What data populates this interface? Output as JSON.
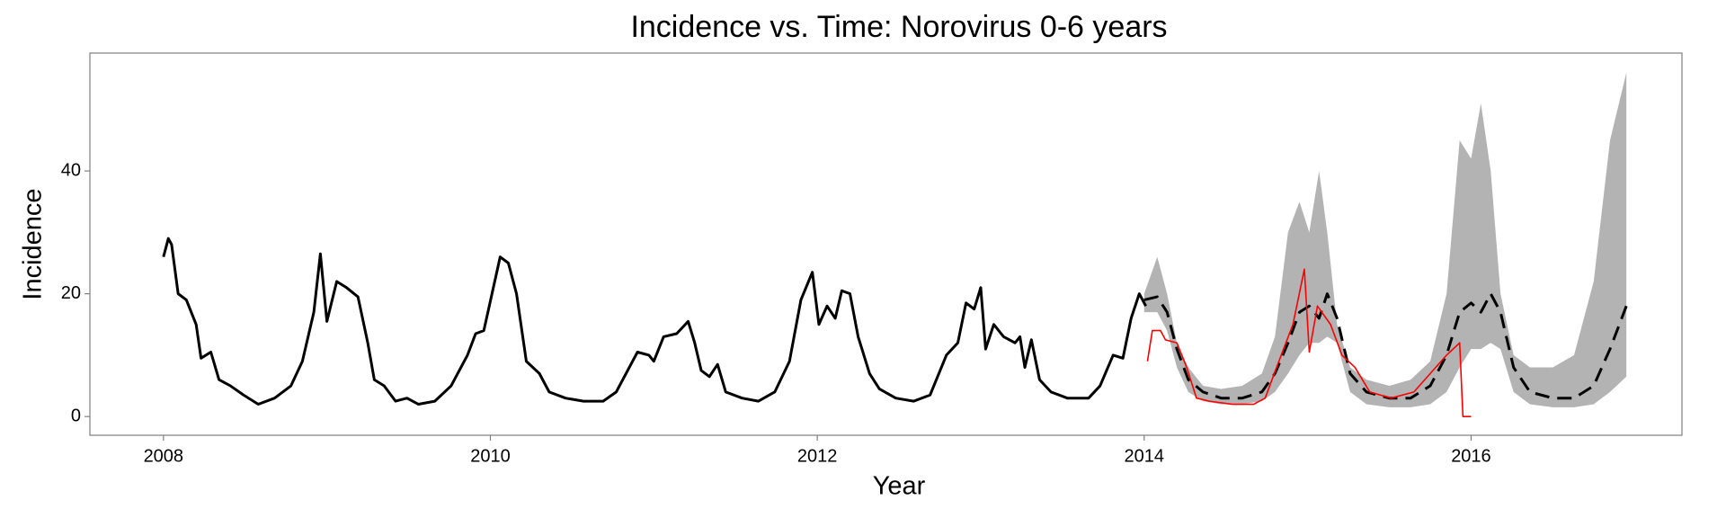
{
  "chart_data": {
    "type": "line",
    "title": "Incidence vs. Time: Norovirus 0-6 years",
    "x_label": "Year",
    "y_label": "Incidence",
    "xlim": [
      2007.55,
      2017.29
    ],
    "ylim": [
      -3.05,
      59.2
    ],
    "xticks": [
      2008,
      2010,
      2012,
      2014,
      2016
    ],
    "yticks": [
      0,
      20,
      40
    ],
    "grid": false,
    "band": {
      "color": "#b3b3b3",
      "x": [
        2014.0,
        2014.08,
        2014.14,
        2014.2,
        2014.27,
        2014.36,
        2014.47,
        2014.6,
        2014.72,
        2014.8,
        2014.88,
        2014.95,
        2015.01,
        2015.07,
        2015.12,
        2015.18,
        2015.26,
        2015.36,
        2015.5,
        2015.63,
        2015.75,
        2015.85,
        2015.93,
        2016.0,
        2016.06,
        2016.12,
        2016.18,
        2016.26,
        2016.36,
        2016.5,
        2016.63,
        2016.75,
        2016.85,
        2016.95
      ],
      "lower": [
        17,
        17,
        14,
        8,
        4,
        2.5,
        2,
        2,
        2.5,
        4,
        7,
        10,
        12,
        12,
        13,
        12,
        4,
        2,
        1.5,
        1.5,
        2,
        4,
        8,
        11,
        11,
        12,
        11,
        4,
        2,
        1.5,
        1.5,
        2,
        4,
        6.5
      ],
      "upper": [
        20,
        26,
        20,
        12,
        8,
        5,
        4.5,
        5,
        7,
        13,
        30,
        35,
        30,
        40,
        30,
        15,
        8,
        6,
        5,
        6,
        9,
        20,
        45,
        42,
        51,
        40,
        20,
        10,
        8,
        8,
        10,
        22,
        45,
        56
      ]
    },
    "series": [
      {
        "color": "#000000",
        "width": 3,
        "dash": false,
        "x": [
          2008.0,
          2008.03,
          2008.05,
          2008.09,
          2008.14,
          2008.2,
          2008.23,
          2008.29,
          2008.34,
          2008.41,
          2008.49,
          2008.58,
          2008.68,
          2008.78,
          2008.85,
          2008.92,
          2008.96,
          2009.0,
          2009.06,
          2009.12,
          2009.19,
          2009.25,
          2009.29,
          2009.35,
          2009.42,
          2009.49,
          2009.56,
          2009.66,
          2009.76,
          2009.86,
          2009.91,
          2009.96,
          2010.01,
          2010.06,
          2010.11,
          2010.16,
          2010.22,
          2010.3,
          2010.36,
          2010.46,
          2010.57,
          2010.69,
          2010.77,
          2010.85,
          2010.9,
          2010.97,
          2011.0,
          2011.06,
          2011.14,
          2011.21,
          2011.25,
          2011.29,
          2011.34,
          2011.39,
          2011.44,
          2011.54,
          2011.64,
          2011.74,
          2011.83,
          2011.9,
          2011.97,
          2012.01,
          2012.06,
          2012.11,
          2012.15,
          2012.2,
          2012.25,
          2012.32,
          2012.38,
          2012.48,
          2012.59,
          2012.69,
          2012.79,
          2012.86,
          2012.91,
          2012.96,
          2013.0,
          2013.03,
          2013.08,
          2013.14,
          2013.21,
          2013.24,
          2013.27,
          2013.31,
          2013.36,
          2013.43,
          2013.53,
          2013.66,
          2013.73,
          2013.81,
          2013.87,
          2013.92,
          2013.97,
          2014.01
        ],
        "values": [
          26,
          29,
          28,
          20,
          19,
          15,
          9.5,
          10.5,
          6,
          5,
          3.5,
          2,
          3,
          5,
          9,
          17,
          26.5,
          15.5,
          22,
          21,
          19.5,
          12,
          6,
          5,
          2.5,
          3,
          2,
          2.5,
          5,
          10,
          13.5,
          14,
          20,
          26,
          25,
          20,
          9,
          7,
          4,
          3,
          2.5,
          2.5,
          4,
          8,
          10.5,
          10,
          9,
          13,
          13.5,
          15.5,
          12,
          7.5,
          6.5,
          8.5,
          4,
          3,
          2.5,
          4,
          9,
          19,
          23.5,
          15,
          18,
          16,
          20.5,
          20,
          13,
          7,
          4.5,
          3,
          2.5,
          3.5,
          10,
          12,
          18.5,
          17.5,
          21,
          11,
          15,
          13,
          12,
          13,
          8,
          12.5,
          6,
          4,
          3,
          3,
          5,
          10,
          9.5,
          16,
          20,
          18
        ]
      },
      {
        "color": "#000000",
        "width": 3,
        "dash": true,
        "x": [
          2014.0,
          2014.08,
          2014.14,
          2014.2,
          2014.27,
          2014.36,
          2014.47,
          2014.6,
          2014.72,
          2014.8,
          2014.88,
          2014.95,
          2015.01,
          2015.07,
          2015.12,
          2015.18,
          2015.26,
          2015.36,
          2015.5,
          2015.63,
          2015.75,
          2015.85,
          2015.93,
          2016.0,
          2016.06,
          2016.12,
          2016.18,
          2016.26,
          2016.36,
          2016.5,
          2016.63,
          2016.75,
          2016.85,
          2016.95
        ],
        "values": [
          19,
          19.5,
          17,
          11,
          6,
          4,
          3,
          3,
          4,
          7,
          12,
          17,
          18,
          16,
          20,
          16,
          7,
          4,
          3,
          3,
          5,
          10,
          17,
          18.5,
          17,
          20,
          17,
          8,
          4,
          3,
          3,
          5,
          11,
          18
        ]
      },
      {
        "color": "#ff0000",
        "width": 1.6,
        "dash": false,
        "x": [
          2014.02,
          2014.05,
          2014.1,
          2014.13,
          2014.2,
          2014.26,
          2014.32,
          2014.4,
          2014.54,
          2014.67,
          2014.74,
          2014.81,
          2014.91,
          2014.98,
          2015.01,
          2015.06,
          2015.14,
          2015.21,
          2015.29,
          2015.38,
          2015.51,
          2015.65,
          2015.75,
          2015.85,
          2015.93,
          2015.95,
          2016.0
        ],
        "values": [
          9,
          14,
          14,
          12.5,
          12,
          8,
          3,
          2.5,
          2,
          2,
          3,
          8,
          15,
          24,
          10.5,
          18,
          15,
          10,
          8,
          4,
          3,
          4,
          7,
          10,
          12,
          0,
          0
        ]
      }
    ]
  }
}
